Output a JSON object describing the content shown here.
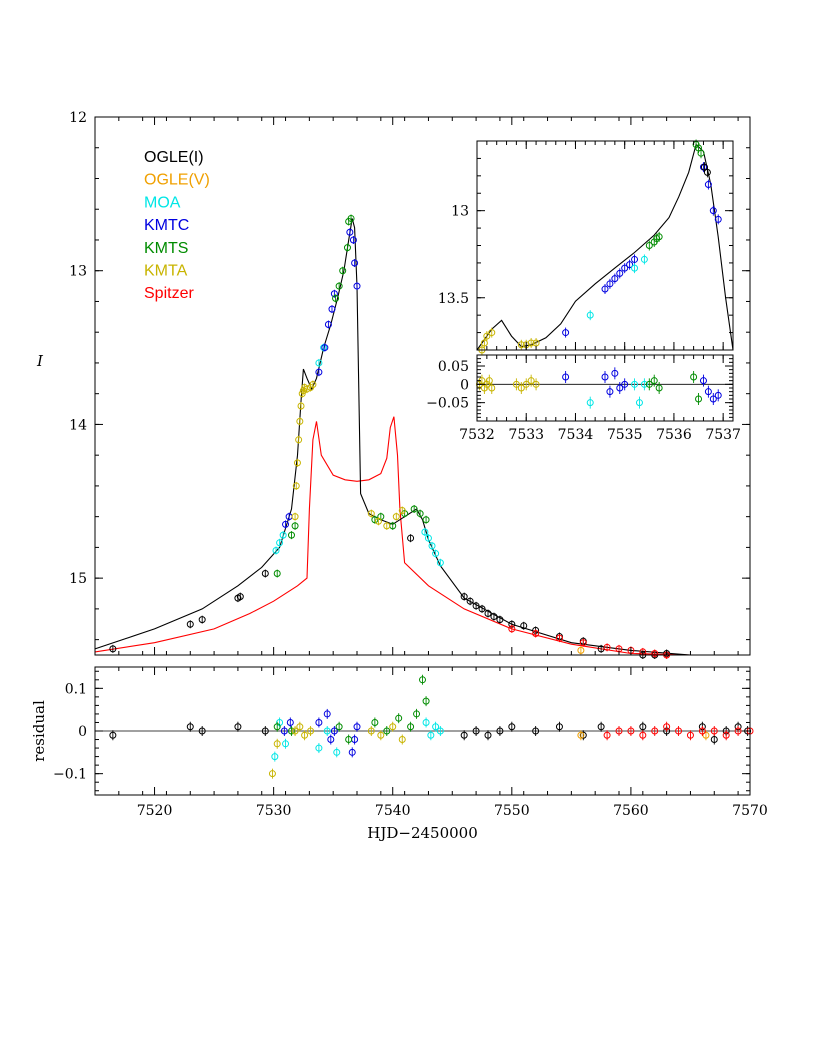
{
  "chart_data": [
    {
      "panel": "main light curve",
      "type": "scatter",
      "ylabel": "I",
      "xlim": [
        7515,
        7570
      ],
      "ylim": [
        15.5,
        12
      ],
      "y_inverted": true,
      "x_ticks": [
        7520,
        7530,
        7540,
        7550,
        7560,
        7570
      ],
      "y_ticks": [
        12,
        13,
        14,
        15
      ],
      "legend": {
        "placement": "top-left",
        "entries": [
          {
            "label": "OGLE(I)",
            "color": "#000000"
          },
          {
            "label": "OGLE(V)",
            "color": "#f0a000"
          },
          {
            "label": "MOA",
            "color": "#00e6e6"
          },
          {
            "label": "KMTC",
            "color": "#0000e0"
          },
          {
            "label": "KMTS",
            "color": "#008c00"
          },
          {
            "label": "KMTA",
            "color": "#c8b400"
          },
          {
            "label": "Spitzer",
            "color": "#ff0000"
          }
        ]
      },
      "model_ground": {
        "name": "ground model",
        "color": "#000000",
        "x": [
          7515,
          7520,
          7524,
          7527,
          7529,
          7530.5,
          7531.5,
          7532.0,
          7532.3,
          7532.5,
          7532.8,
          7533.2,
          7533.6,
          7534.2,
          7534.8,
          7535.4,
          7535.9,
          7536.3,
          7536.6,
          7536.8,
          7537.0,
          7537.3,
          7538,
          7539,
          7540,
          7541,
          7542,
          7542.5,
          7543,
          7544,
          7546,
          7550,
          7555,
          7560,
          7565,
          7570
        ],
        "y": [
          15.46,
          15.33,
          15.2,
          15.05,
          14.93,
          14.8,
          14.55,
          14.2,
          13.85,
          13.64,
          13.7,
          13.77,
          13.7,
          13.5,
          13.35,
          13.17,
          13.0,
          12.8,
          12.66,
          12.72,
          13.1,
          14.45,
          14.58,
          14.62,
          14.65,
          14.6,
          14.55,
          14.62,
          14.75,
          14.92,
          15.13,
          15.3,
          15.42,
          15.47,
          15.52,
          15.54
        ]
      },
      "model_spitzer": {
        "name": "Spitzer model",
        "color": "#ff0000",
        "x": [
          7515,
          7520,
          7525,
          7528,
          7530,
          7532,
          7532.8,
          7533.0,
          7533.3,
          7533.6,
          7534.0,
          7535,
          7536,
          7537,
          7538,
          7539,
          7539.5,
          7539.8,
          7540.1,
          7540.4,
          7540.6,
          7541,
          7543,
          7546,
          7550,
          7555,
          7560,
          7565,
          7570
        ],
        "y": [
          15.48,
          15.42,
          15.33,
          15.23,
          15.15,
          15.05,
          15.0,
          14.55,
          14.1,
          13.98,
          14.2,
          14.33,
          14.36,
          14.37,
          14.36,
          14.32,
          14.22,
          14.02,
          13.95,
          14.2,
          14.55,
          14.9,
          15.05,
          15.2,
          15.33,
          15.43,
          15.49,
          15.53,
          15.55
        ]
      },
      "series": [
        {
          "name": "OGLE(I)",
          "color": "#000000",
          "x": [
            7516.5,
            7523,
            7524,
            7527,
            7527.2,
            7529.3,
            7541.5,
            7546,
            7546.5,
            7547,
            7547.5,
            7548,
            7548.5,
            7549,
            7550,
            7551,
            7552,
            7554,
            7556,
            7557.5,
            7561,
            7562,
            7563,
            7566,
            7567,
            7568,
            7569,
            7569.8
          ],
          "y": [
            15.46,
            15.3,
            15.27,
            15.13,
            15.12,
            14.97,
            14.74,
            15.12,
            15.15,
            15.18,
            15.2,
            15.23,
            15.25,
            15.27,
            15.3,
            15.31,
            15.34,
            15.38,
            15.41,
            15.46,
            15.5,
            15.5,
            15.49,
            15.53,
            15.52,
            15.53,
            15.52,
            15.53
          ]
        },
        {
          "name": "OGLE(V)",
          "color": "#f0a000",
          "x": [
            7555.8,
            7566.3
          ],
          "y": [
            15.47,
            15.53
          ]
        },
        {
          "name": "MOA",
          "color": "#00e6e6",
          "x": [
            7530.2,
            7530.5,
            7530.8,
            7533.8,
            7534.2,
            7542.7,
            7543.0,
            7543.3,
            7543.6,
            7544.0
          ],
          "y": [
            14.82,
            14.77,
            14.72,
            13.6,
            13.5,
            14.7,
            14.74,
            14.79,
            14.84,
            14.9
          ]
        },
        {
          "name": "KMTC",
          "color": "#0000e0",
          "x": [
            7531.0,
            7531.3,
            7533.8,
            7534.3,
            7534.6,
            7534.9,
            7535.1,
            7536.4,
            7536.7,
            7536.8,
            7537.0
          ],
          "y": [
            14.65,
            14.6,
            13.66,
            13.5,
            13.35,
            13.25,
            13.15,
            12.75,
            12.8,
            12.95,
            13.1
          ]
        },
        {
          "name": "KMTS",
          "color": "#008c00",
          "x": [
            7530.3,
            7531.5,
            7531.8,
            7535.2,
            7535.5,
            7535.8,
            7536.2,
            7536.3,
            7536.5,
            7538.5,
            7539.0,
            7540.0,
            7541.0,
            7541.8,
            7542.3,
            7542.8
          ],
          "y": [
            14.97,
            14.72,
            14.66,
            13.18,
            13.1,
            13.0,
            12.85,
            12.68,
            12.66,
            14.62,
            14.6,
            14.66,
            14.58,
            14.55,
            14.58,
            14.62
          ]
        },
        {
          "name": "KMTA",
          "color": "#c8b400",
          "x": [
            7531.8,
            7531.9,
            7532.0,
            7532.1,
            7532.2,
            7532.3,
            7532.4,
            7532.5,
            7532.6,
            7532.8,
            7533.1,
            7533.3,
            7538.2,
            7538.8,
            7539.5,
            7540.3,
            7540.8
          ],
          "y": [
            14.6,
            14.4,
            14.25,
            14.1,
            13.98,
            13.88,
            13.8,
            13.78,
            13.76,
            13.77,
            13.76,
            13.74,
            14.58,
            14.63,
            14.66,
            14.6,
            14.56
          ]
        },
        {
          "name": "Spitzer",
          "color": "#ff0000",
          "x": [
            7550,
            7552,
            7554,
            7556,
            7558,
            7559,
            7560,
            7561,
            7562,
            7563,
            7564,
            7565,
            7566,
            7567,
            7568,
            7569,
            7570
          ],
          "y": [
            15.33,
            15.36,
            15.39,
            15.42,
            15.45,
            15.46,
            15.47,
            15.48,
            15.49,
            15.5,
            15.51,
            15.51,
            15.52,
            15.52,
            15.53,
            15.53,
            15.54
          ]
        }
      ]
    },
    {
      "panel": "inset zoom",
      "type": "scatter",
      "xlim": [
        7532,
        7537.2
      ],
      "ylim": [
        13.8,
        12.6
      ],
      "y_inverted": true,
      "x_ticks": [
        7532,
        7533,
        7534,
        7535,
        7536,
        7537
      ],
      "y_ticks": [
        13,
        13.5
      ],
      "model": {
        "color": "#000000",
        "x": [
          7532.0,
          7532.3,
          7532.5,
          7532.7,
          7532.9,
          7533.1,
          7533.4,
          7533.7,
          7534.0,
          7534.4,
          7534.8,
          7535.2,
          7535.6,
          7535.9,
          7536.1,
          7536.3,
          7536.45,
          7536.6,
          7536.75,
          7536.9,
          7537.05,
          7537.2
        ],
        "y": [
          13.82,
          13.68,
          13.63,
          13.72,
          13.78,
          13.77,
          13.73,
          13.65,
          13.52,
          13.42,
          13.33,
          13.24,
          13.14,
          13.04,
          12.92,
          12.78,
          12.62,
          12.66,
          12.85,
          13.15,
          13.5,
          13.82
        ]
      },
      "series": [
        {
          "name": "KMTA",
          "color": "#c8b400",
          "x": [
            7532.1,
            7532.15,
            7532.2,
            7532.3,
            7532.9,
            7533.0,
            7533.1,
            7533.2
          ],
          "y": [
            13.8,
            13.76,
            13.72,
            13.7,
            13.77,
            13.77,
            13.76,
            13.76
          ]
        },
        {
          "name": "KMTC",
          "color": "#0000e0",
          "x": [
            7533.8,
            7534.6,
            7534.7,
            7534.8,
            7534.9,
            7535.0,
            7535.1,
            7535.2,
            7536.6,
            7536.7,
            7536.8,
            7536.9
          ],
          "y": [
            13.7,
            13.45,
            13.42,
            13.39,
            13.36,
            13.33,
            13.31,
            13.28,
            12.75,
            12.85,
            13.0,
            13.05
          ]
        },
        {
          "name": "MOA",
          "color": "#00e6e6",
          "x": [
            7534.3,
            7535.2,
            7535.4
          ],
          "y": [
            13.6,
            13.33,
            13.28
          ]
        },
        {
          "name": "KMTS",
          "color": "#008c00",
          "x": [
            7535.5,
            7535.6,
            7535.65,
            7535.7,
            7536.45,
            7536.5,
            7536.55
          ],
          "y": [
            13.2,
            13.18,
            13.16,
            13.15,
            12.62,
            12.64,
            12.67
          ]
        },
        {
          "name": "OGLE(I)",
          "color": "#000000",
          "x": [
            7536.62,
            7536.68
          ],
          "y": [
            12.75,
            12.78
          ]
        }
      ]
    },
    {
      "panel": "inset residual",
      "type": "scatter",
      "xlim": [
        7532,
        7537.2
      ],
      "ylim": [
        -0.1,
        0.08
      ],
      "x_ticks": [
        7532,
        7533,
        7534,
        7535,
        7536,
        7537
      ],
      "y_ticks": [
        0.05,
        0,
        -0.05
      ],
      "y_tick_labels": [
        "0.05",
        "0",
        "−0.05"
      ],
      "x_tick_labels": [
        "7532",
        "7533",
        "7534",
        "7535",
        "7536",
        "7537"
      ],
      "series": [
        {
          "name": "KMTA",
          "color": "#c8b400",
          "x": [
            7532.05,
            7532.1,
            7532.15,
            7532.2,
            7532.25,
            7532.3,
            7532.8,
            7532.9,
            7533.0,
            7533.1,
            7533.2
          ],
          "y": [
            0.0,
            0.01,
            -0.01,
            0.0,
            0.01,
            -0.01,
            0.0,
            -0.01,
            0.0,
            0.01,
            0.0
          ]
        },
        {
          "name": "KMTC",
          "color": "#0000e0",
          "x": [
            7533.8,
            7534.6,
            7534.7,
            7534.8,
            7534.9,
            7535.0,
            7536.6,
            7536.7,
            7536.8,
            7536.9
          ],
          "y": [
            0.02,
            0.02,
            -0.02,
            0.03,
            -0.01,
            0.0,
            0.01,
            -0.02,
            -0.04,
            -0.03
          ]
        },
        {
          "name": "MOA",
          "color": "#00e6e6",
          "x": [
            7534.3,
            7535.2,
            7535.3,
            7535.4
          ],
          "y": [
            -0.05,
            0.0,
            -0.05,
            0.0
          ]
        },
        {
          "name": "KMTS",
          "color": "#008c00",
          "x": [
            7535.5,
            7535.6,
            7535.7,
            7536.4,
            7536.5
          ],
          "y": [
            0.0,
            0.01,
            -0.01,
            0.02,
            -0.04
          ]
        }
      ]
    },
    {
      "panel": "residual",
      "type": "scatter",
      "xlabel": "HJD−2450000",
      "ylabel": "residual",
      "xlim": [
        7515,
        7570
      ],
      "ylim": [
        -0.15,
        0.15
      ],
      "x_ticks": [
        7520,
        7530,
        7540,
        7550,
        7560,
        7570
      ],
      "y_ticks": [
        0.1,
        0,
        -0.1
      ],
      "y_tick_labels": [
        "0.1",
        "0",
        "−0.1"
      ],
      "series": [
        {
          "name": "OGLE(I)",
          "color": "#000000",
          "x": [
            7516.5,
            7523,
            7524,
            7527,
            7529.3,
            7546,
            7547,
            7548,
            7549,
            7550,
            7552,
            7554,
            7556,
            7557.5,
            7561,
            7563,
            7566,
            7567,
            7568,
            7569,
            7569.8
          ],
          "y": [
            -0.01,
            0.01,
            0.0,
            0.01,
            0.0,
            -0.01,
            0.0,
            -0.01,
            0.0,
            0.01,
            0.0,
            0.01,
            -0.01,
            0.01,
            0.01,
            0.0,
            0.01,
            -0.02,
            0.0,
            0.01,
            0.0
          ]
        },
        {
          "name": "OGLE(V)",
          "color": "#f0a000",
          "x": [
            7555.8,
            7566.3
          ],
          "y": [
            -0.01,
            -0.01
          ]
        },
        {
          "name": "MOA",
          "color": "#00e6e6",
          "x": [
            7530.1,
            7530.5,
            7531.0,
            7533.8,
            7534.5,
            7535.3,
            7542.8,
            7543.2,
            7543.6,
            7544.0
          ],
          "y": [
            -0.06,
            0.02,
            -0.03,
            -0.04,
            0.0,
            -0.05,
            0.02,
            -0.01,
            0.01,
            0.0
          ]
        },
        {
          "name": "KMTC",
          "color": "#0000e0",
          "x": [
            7530.9,
            7531.4,
            7533.8,
            7534.5,
            7534.8,
            7535.1,
            7536.6,
            7536.8,
            7537.0
          ],
          "y": [
            0.0,
            0.02,
            0.02,
            0.04,
            -0.02,
            0.0,
            -0.05,
            -0.02,
            0.01
          ]
        },
        {
          "name": "KMTS",
          "color": "#008c00",
          "x": [
            7530.3,
            7531.5,
            7535.5,
            7536.3,
            7538.5,
            7539.5,
            7540.5,
            7541.5,
            7542.0,
            7542.5,
            7542.8
          ],
          "y": [
            0.01,
            0.0,
            0.01,
            -0.02,
            0.02,
            0.0,
            0.03,
            0.01,
            0.04,
            0.12,
            0.07
          ]
        },
        {
          "name": "KMTA",
          "color": "#c8b400",
          "x": [
            7529.9,
            7530.3,
            7531.8,
            7532.2,
            7532.6,
            7533.1,
            7538.2,
            7539.0,
            7540.0,
            7540.8
          ],
          "y": [
            -0.1,
            -0.03,
            0.0,
            0.01,
            -0.01,
            0.0,
            0.0,
            -0.01,
            0.01,
            -0.02
          ]
        },
        {
          "name": "Spitzer",
          "color": "#ff0000",
          "x": [
            7558,
            7559,
            7560,
            7561,
            7562,
            7563,
            7564,
            7565,
            7566,
            7567,
            7568,
            7569,
            7570
          ],
          "y": [
            -0.01,
            0.0,
            0.0,
            -0.01,
            0.0,
            0.01,
            0.0,
            -0.01,
            0.0,
            0.0,
            -0.01,
            0.0,
            0.0
          ]
        }
      ]
    }
  ]
}
